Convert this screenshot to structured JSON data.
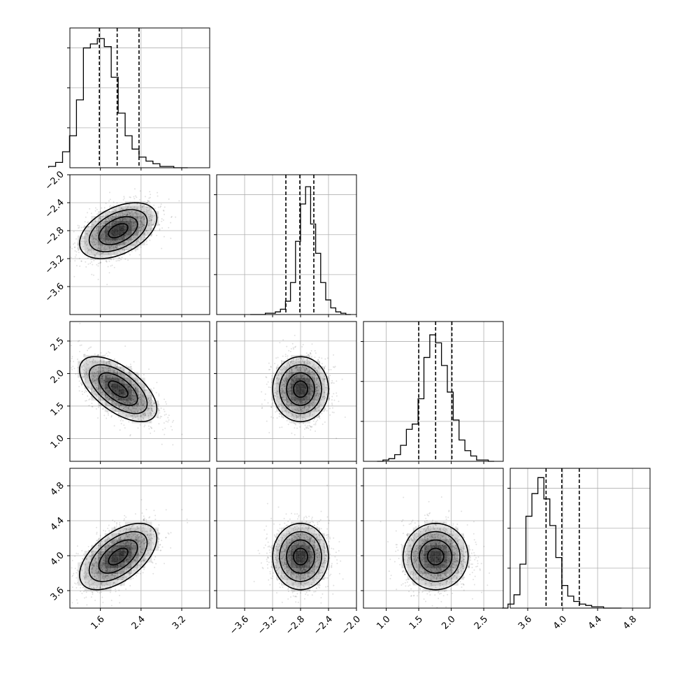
{
  "chart_data": {
    "type": "corner",
    "grid": true,
    "quantiles": [
      0.16,
      0.5,
      0.84
    ],
    "parameters": [
      {
        "mean": 1.95,
        "std": 0.38,
        "range": [
          1.0,
          3.75
        ],
        "ticks": [
          1.6,
          2.4,
          3.2
        ],
        "tick_labels": [
          "1.6",
          "2.4",
          "3.2"
        ],
        "quantile_values": [
          1.58,
          1.93,
          2.36
        ],
        "hist": [
          0.01,
          0.04,
          0.12,
          0.24,
          0.51,
          0.9,
          0.93,
          0.97,
          0.91,
          0.68,
          0.41,
          0.24,
          0.14,
          0.08,
          0.05,
          0.03,
          0.01,
          0.01,
          0.0,
          0.0
        ]
      },
      {
        "mean": -2.8,
        "std": 0.2,
        "range": [
          -4.0,
          -2.0
        ],
        "ticks": [
          -3.6,
          -3.2,
          -2.8,
          -2.4,
          -2.0
        ],
        "tick_labels": [
          "−3.6",
          "−3.2",
          "−2.8",
          "−2.4",
          "−2.0"
        ],
        "quantile_values": [
          -3.01,
          -2.81,
          -2.61
        ],
        "hist": [
          0.0,
          0.0,
          0.0,
          0.01,
          0.01,
          0.02,
          0.04,
          0.1,
          0.24,
          0.55,
          0.83,
          0.96,
          0.68,
          0.46,
          0.24,
          0.11,
          0.05,
          0.02,
          0.01,
          0.0
        ]
      },
      {
        "mean": 1.76,
        "std": 0.25,
        "range": [
          0.65,
          2.8
        ],
        "ticks": [
          1.0,
          1.5,
          2.0,
          2.5
        ],
        "tick_labels": [
          "1.0",
          "1.5",
          "2.0",
          "2.5"
        ],
        "quantile_values": [
          1.5,
          1.76,
          2.01
        ],
        "hist": [
          0.0,
          0.01,
          0.02,
          0.05,
          0.12,
          0.24,
          0.28,
          0.47,
          0.78,
          0.95,
          0.89,
          0.72,
          0.52,
          0.31,
          0.16,
          0.08,
          0.04,
          0.01,
          0.01,
          0.0
        ]
      },
      {
        "mean": 3.99,
        "std": 0.19,
        "range": [
          3.4,
          5.0
        ],
        "ticks": [
          3.6,
          4.0,
          4.4,
          4.8
        ],
        "tick_labels": [
          "3.6",
          "4.0",
          "4.4",
          "4.8"
        ],
        "quantile_values": [
          3.81,
          3.99,
          4.19
        ],
        "hist": [
          0.0,
          0.03,
          0.1,
          0.33,
          0.69,
          0.86,
          0.98,
          0.82,
          0.62,
          0.38,
          0.17,
          0.09,
          0.05,
          0.03,
          0.02,
          0.01,
          0.01,
          0.0,
          0.0,
          0.0
        ]
      }
    ],
    "correlations": {
      "1-0": 0.45,
      "2-0": -0.6,
      "2-1": 0.0,
      "3-0": 0.55,
      "3-1": 0.0,
      "3-2": 0.0
    },
    "contour_levels_sigma": [
      0.5,
      1.0,
      1.5,
      2.0
    ]
  }
}
